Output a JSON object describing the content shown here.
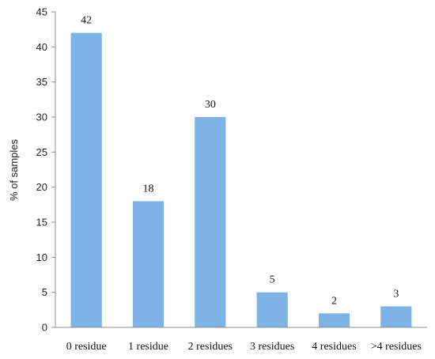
{
  "chart_data": {
    "type": "bar",
    "title": "",
    "xlabel": "",
    "ylabel": "% of samples",
    "ylim": [
      0,
      45
    ],
    "yticks": [
      0,
      5,
      10,
      15,
      20,
      25,
      30,
      35,
      40,
      45
    ],
    "grid": false,
    "categories": [
      "0 residue",
      "1 residue",
      "2 residues",
      "3 residues",
      "4 residues",
      ">4 residues"
    ],
    "values": [
      42,
      18,
      30,
      5,
      2,
      3
    ],
    "data_labels": [
      "42",
      "18",
      "30",
      "5",
      "2",
      "3"
    ],
    "bar_color": "#7eb3e6",
    "axis_color": "#8c8c8c"
  }
}
